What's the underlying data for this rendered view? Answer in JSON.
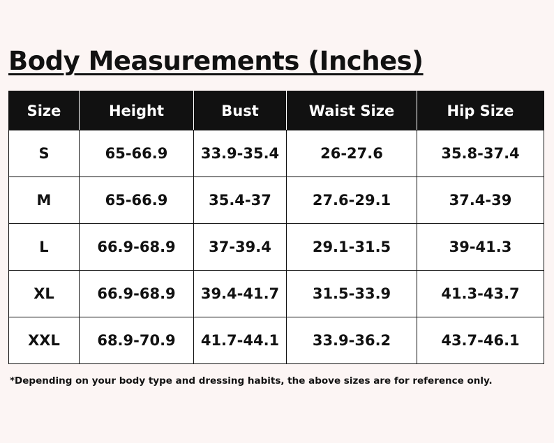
{
  "header": {
    "title": "Body Measurements (Inches)"
  },
  "table": {
    "columns": [
      "Size",
      "Height",
      "Bust",
      "Waist Size",
      "Hip Size"
    ],
    "rows": [
      [
        "S",
        "65-66.9",
        "33.9-35.4",
        "26-27.6",
        "35.8-37.4"
      ],
      [
        "M",
        "65-66.9",
        "35.4-37",
        "27.6-29.1",
        "37.4-39"
      ],
      [
        "L",
        "66.9-68.9",
        "37-39.4",
        "29.1-31.5",
        "39-41.3"
      ],
      [
        "XL",
        "66.9-68.9",
        "39.4-41.7",
        "31.5-33.9",
        "41.3-43.7"
      ],
      [
        "XXL",
        "68.9-70.9",
        "41.7-44.1",
        "33.9-36.2",
        "43.7-46.1"
      ]
    ]
  },
  "footnote": "*Depending on your body type and dressing habits, the above sizes are for reference only."
}
